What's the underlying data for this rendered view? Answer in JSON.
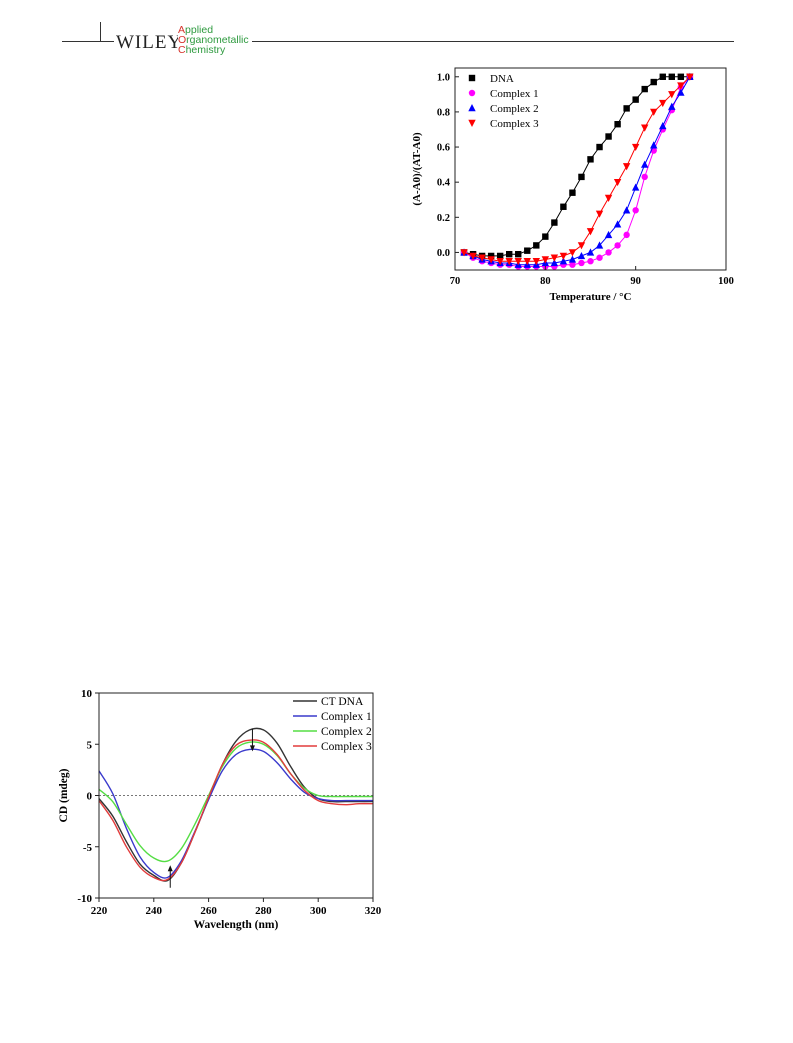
{
  "header": {
    "publisher": "WILEY",
    "journal_lines": [
      {
        "cap": "A",
        "rest": "pplied"
      },
      {
        "cap": "O",
        "rest": "rganometallic"
      },
      {
        "cap": "C",
        "rest": "hemistry"
      }
    ],
    "colors": {
      "cap": "#d6322b",
      "rest": "#2e9a3f"
    }
  },
  "chart_data": [
    {
      "type": "line",
      "xlabel": "Temperature / °C",
      "ylabel": "(A-A0)/(AT-A0)",
      "xlim": [
        70,
        100
      ],
      "ylim": [
        -0.1,
        1.05
      ],
      "xticks": [
        70,
        80,
        90,
        100
      ],
      "yticks": [
        0.0,
        0.2,
        0.4,
        0.6,
        0.8,
        1.0
      ],
      "legend_position": "top-left",
      "series": [
        {
          "name": "DNA",
          "color": "#000000",
          "marker": "square",
          "x": [
            71,
            72,
            73,
            74,
            75,
            76,
            77,
            78,
            79,
            80,
            81,
            82,
            83,
            84,
            85,
            86,
            87,
            88,
            89,
            90,
            91,
            92,
            93,
            94,
            95,
            96
          ],
          "y": [
            0.0,
            -0.01,
            -0.02,
            -0.02,
            -0.02,
            -0.01,
            -0.01,
            0.01,
            0.04,
            0.09,
            0.17,
            0.26,
            0.34,
            0.43,
            0.53,
            0.6,
            0.66,
            0.73,
            0.82,
            0.87,
            0.93,
            0.97,
            1.0,
            1.0,
            1.0,
            1.0
          ]
        },
        {
          "name": "Complex 1",
          "color": "#ff00ff",
          "marker": "circle",
          "x": [
            71,
            72,
            73,
            74,
            75,
            76,
            77,
            78,
            79,
            80,
            81,
            82,
            83,
            84,
            85,
            86,
            87,
            88,
            89,
            90,
            91,
            92,
            93,
            94,
            95,
            96
          ],
          "y": [
            0.0,
            -0.03,
            -0.05,
            -0.06,
            -0.07,
            -0.07,
            -0.08,
            -0.08,
            -0.08,
            -0.08,
            -0.08,
            -0.07,
            -0.07,
            -0.06,
            -0.05,
            -0.03,
            0.0,
            0.04,
            0.1,
            0.24,
            0.43,
            0.58,
            0.7,
            0.81,
            0.94,
            1.0
          ]
        },
        {
          "name": "Complex 2",
          "color": "#0000ff",
          "marker": "triangle-up",
          "x": [
            71,
            72,
            73,
            74,
            75,
            76,
            77,
            78,
            79,
            80,
            81,
            82,
            83,
            84,
            85,
            86,
            87,
            88,
            89,
            90,
            91,
            92,
            93,
            94,
            95,
            96
          ],
          "y": [
            0.0,
            -0.02,
            -0.04,
            -0.05,
            -0.06,
            -0.06,
            -0.07,
            -0.07,
            -0.07,
            -0.06,
            -0.06,
            -0.05,
            -0.04,
            -0.02,
            0.0,
            0.04,
            0.1,
            0.16,
            0.24,
            0.37,
            0.5,
            0.61,
            0.72,
            0.83,
            0.91,
            1.0
          ]
        },
        {
          "name": "Complex 3",
          "color": "#ff0000",
          "marker": "triangle-down",
          "x": [
            71,
            72,
            73,
            74,
            75,
            76,
            77,
            78,
            79,
            80,
            81,
            82,
            83,
            84,
            85,
            86,
            87,
            88,
            89,
            90,
            91,
            92,
            93,
            94,
            95,
            96
          ],
          "y": [
            0.0,
            -0.02,
            -0.03,
            -0.04,
            -0.05,
            -0.05,
            -0.05,
            -0.05,
            -0.05,
            -0.04,
            -0.03,
            -0.02,
            0.0,
            0.04,
            0.12,
            0.22,
            0.31,
            0.4,
            0.49,
            0.6,
            0.71,
            0.8,
            0.85,
            0.9,
            0.95,
            1.0
          ]
        }
      ]
    },
    {
      "type": "line",
      "xlabel": "Wavelength (nm)",
      "ylabel": "CD (mdeg)",
      "xlim": [
        220,
        320
      ],
      "ylim": [
        -10,
        10
      ],
      "xticks": [
        220,
        240,
        260,
        280,
        300,
        320
      ],
      "yticks": [
        -10,
        -5,
        0,
        5,
        10
      ],
      "legend_position": "top-right",
      "zero_line": true,
      "arrows": [
        {
          "x": 246,
          "from": -9.0,
          "to": -7.0,
          "direction": "up"
        },
        {
          "x": 276,
          "from": 6.5,
          "to": 4.5,
          "direction": "down"
        }
      ],
      "series": [
        {
          "name": "CT DNA",
          "color": "#333333",
          "x": [
            220,
            225,
            230,
            235,
            240,
            245,
            250,
            255,
            260,
            265,
            270,
            275,
            280,
            285,
            290,
            295,
            300,
            305,
            310,
            315,
            320
          ],
          "y": [
            -0.3,
            -2.0,
            -4.5,
            -6.7,
            -7.8,
            -8.3,
            -6.6,
            -3.6,
            -0.3,
            3.0,
            5.3,
            6.4,
            6.4,
            5.1,
            2.8,
            0.8,
            -0.3,
            -0.6,
            -0.6,
            -0.6,
            -0.6
          ]
        },
        {
          "name": "Complex 1",
          "color": "#3a3acc",
          "x": [
            220,
            225,
            230,
            235,
            240,
            245,
            250,
            255,
            260,
            265,
            270,
            275,
            280,
            285,
            290,
            295,
            300,
            305,
            310,
            315,
            320
          ],
          "y": [
            2.4,
            0.2,
            -3.2,
            -6.0,
            -7.5,
            -8.0,
            -6.4,
            -3.5,
            -0.4,
            2.4,
            4.0,
            4.5,
            4.3,
            3.2,
            1.6,
            0.3,
            -0.3,
            -0.5,
            -0.5,
            -0.5,
            -0.5
          ]
        },
        {
          "name": "Complex 2",
          "color": "#55dd44",
          "x": [
            220,
            225,
            230,
            235,
            240,
            245,
            250,
            255,
            260,
            265,
            270,
            275,
            280,
            285,
            290,
            295,
            300,
            305,
            310,
            315,
            320
          ],
          "y": [
            0.6,
            -0.6,
            -2.8,
            -4.9,
            -6.1,
            -6.4,
            -5.2,
            -2.8,
            0.0,
            2.8,
            4.6,
            5.2,
            5.0,
            3.9,
            2.1,
            0.7,
            0.0,
            -0.1,
            -0.1,
            -0.1,
            -0.1
          ]
        },
        {
          "name": "Complex 3",
          "color": "#e23b3b",
          "x": [
            220,
            225,
            230,
            235,
            240,
            245,
            250,
            255,
            260,
            265,
            270,
            275,
            280,
            285,
            290,
            295,
            300,
            305,
            310,
            315,
            320
          ],
          "y": [
            -0.5,
            -2.4,
            -5.0,
            -7.0,
            -8.0,
            -8.2,
            -6.6,
            -3.6,
            -0.2,
            3.0,
            4.9,
            5.4,
            5.2,
            4.0,
            2.1,
            0.5,
            -0.5,
            -0.8,
            -0.9,
            -0.8,
            -0.8
          ]
        }
      ]
    }
  ]
}
